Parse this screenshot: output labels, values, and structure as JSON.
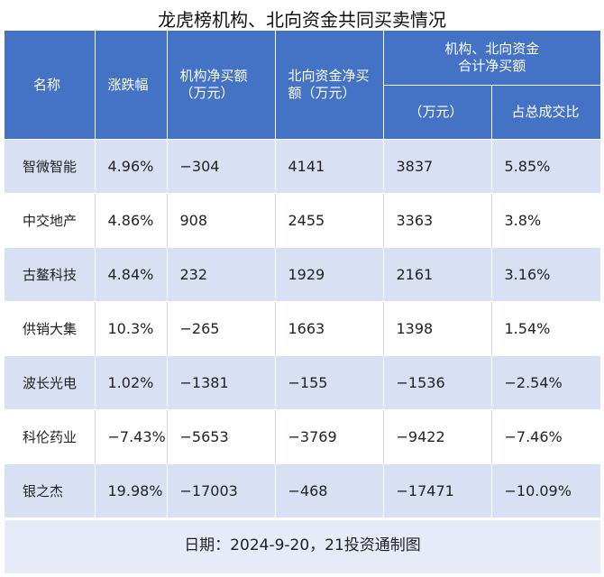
{
  "title": "龙虎榜机构、北向资金共同买卖情况",
  "headers": {
    "name": "名称",
    "change": "涨跌幅",
    "inst_net_1": "机构净买额",
    "inst_net_2": "（万元）",
    "north_net_1": "北向资金净买",
    "north_net_2": "额（万元）",
    "combined_1": "机构、北向资金",
    "combined_2": "合计净买额",
    "combined_amount": "（万元）",
    "combined_ratio": "占总成交比"
  },
  "rows": [
    {
      "name": "智微智能",
      "change": "4.96%",
      "inst": "−304",
      "north": "4141",
      "total": "3837",
      "ratio": "5.85%"
    },
    {
      "name": "中交地产",
      "change": "4.86%",
      "inst": "908",
      "north": "2455",
      "total": "3363",
      "ratio": "3.8%"
    },
    {
      "name": "古鳌科技",
      "change": "4.84%",
      "inst": "232",
      "north": "1929",
      "total": "2161",
      "ratio": "3.16%"
    },
    {
      "name": "供销大集",
      "change": "10.3%",
      "inst": "−265",
      "north": "1663",
      "total": "1398",
      "ratio": "1.54%"
    },
    {
      "name": "波长光电",
      "change": "1.02%",
      "inst": "−1381",
      "north": "−155",
      "total": "−1536",
      "ratio": "−2.54%"
    },
    {
      "name": "科伦药业",
      "change": "−7.43%",
      "inst": "−5653",
      "north": "−3769",
      "total": "−9422",
      "ratio": "−7.46%"
    },
    {
      "name": "银之杰",
      "change": "19.98%",
      "inst": "−17003",
      "north": "−468",
      "total": "−17471",
      "ratio": "−10.09%"
    }
  ],
  "footer": "日期：2024-9-20，21投资通制图"
}
